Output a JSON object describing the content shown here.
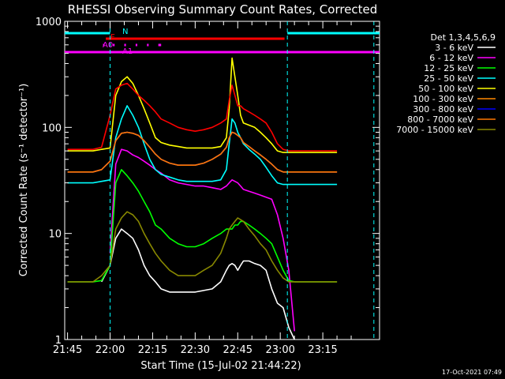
{
  "chart_data": {
    "type": "line",
    "title": "RHESSI Observing Summary Count Rates, Corrected",
    "xlabel": "Start Time (15-Jul-02 21:44:22)",
    "ylabel": "Corrected Count Rate (s⁻¹ detector⁻¹)",
    "yscale": "log",
    "ylim": [
      1,
      1000
    ],
    "xlim_minutes": [
      -1,
      110
    ],
    "x_ticks": [
      {
        "label": "21:45",
        "minute": 0
      },
      {
        "label": "22:00",
        "minute": 15
      },
      {
        "label": "22:15",
        "minute": 30
      },
      {
        "label": "22:30",
        "minute": 45
      },
      {
        "label": "22:45",
        "minute": 60
      },
      {
        "label": "23:00",
        "minute": 75
      },
      {
        "label": "23:15",
        "minute": 90
      }
    ],
    "y_ticks": [
      {
        "label": "1",
        "value": 1
      },
      {
        "label": "10",
        "value": 10
      },
      {
        "label": "100",
        "value": 100
      },
      {
        "label": "1000",
        "value": 1000
      }
    ],
    "legend_title": "Det 1,3,4,5,6,9",
    "x_minutes": [
      0,
      5,
      9,
      12,
      15,
      17,
      19,
      21,
      23,
      25,
      27,
      29,
      31,
      33,
      36,
      39,
      42,
      45,
      48,
      51,
      54,
      56,
      57,
      58,
      59,
      60,
      61,
      62,
      64,
      66,
      68,
      70,
      72,
      74,
      76,
      78,
      80,
      82,
      85,
      88,
      91,
      95
    ],
    "series": [
      {
        "name": "3 - 6 keV",
        "color": "#ffffff",
        "values": [
          null,
          null,
          null,
          3.5,
          5,
          9,
          11,
          10,
          9,
          7,
          5,
          4,
          3.5,
          3,
          2.8,
          2.8,
          2.8,
          2.8,
          2.9,
          3,
          3.5,
          4.5,
          5,
          5.2,
          5,
          4.5,
          5,
          5.5,
          5.5,
          5.2,
          5,
          4.5,
          3,
          2.2,
          2,
          1.3,
          1,
          null,
          null,
          null,
          null,
          null
        ]
      },
      {
        "name": "6 - 12 keV",
        "color": "#ff00ff",
        "values": [
          null,
          null,
          null,
          null,
          6.5,
          45,
          62,
          60,
          55,
          52,
          48,
          44,
          40,
          37,
          32,
          30,
          29,
          28,
          28,
          27,
          26,
          28,
          30,
          32,
          31,
          30,
          28,
          26,
          25,
          24,
          23,
          22,
          21,
          15,
          9,
          4.5,
          1.2,
          null,
          null,
          null,
          null,
          null
        ]
      },
      {
        "name": "12 - 25 keV",
        "color": "#00ff00",
        "values": [
          3.5,
          3.5,
          3.5,
          3.6,
          5,
          30,
          40,
          35,
          30,
          25,
          20,
          16,
          12,
          11,
          9,
          8,
          7.5,
          7.5,
          8,
          9,
          10,
          11,
          11,
          11,
          12,
          12,
          13,
          13,
          12,
          11,
          10,
          9,
          8,
          6,
          4.5,
          3.6,
          3.5,
          3.5,
          3.5,
          3.5,
          3.5,
          3.5
        ]
      },
      {
        "name": "25 - 50 keV",
        "color": "#00ffff",
        "values": [
          30,
          30,
          30,
          31,
          32,
          80,
          120,
          160,
          130,
          100,
          70,
          50,
          40,
          36,
          34,
          32,
          31,
          31,
          31,
          31,
          32,
          40,
          70,
          120,
          110,
          90,
          80,
          70,
          62,
          56,
          50,
          42,
          35,
          30,
          29,
          29,
          29,
          29,
          29,
          29,
          29,
          29
        ]
      },
      {
        "name": "50 - 100 keV",
        "color": "#ffff00",
        "values": [
          60,
          60,
          60,
          62,
          64,
          200,
          270,
          300,
          260,
          200,
          150,
          110,
          80,
          72,
          68,
          66,
          64,
          64,
          64,
          64,
          66,
          80,
          150,
          450,
          300,
          200,
          130,
          110,
          105,
          100,
          90,
          80,
          70,
          60,
          58,
          58,
          58,
          58,
          58,
          58,
          58,
          58
        ]
      },
      {
        "name": "100 - 300 keV",
        "color": "#ff8800",
        "values": [
          38,
          38,
          38,
          40,
          48,
          75,
          88,
          90,
          88,
          84,
          75,
          65,
          56,
          50,
          46,
          44,
          44,
          44,
          46,
          50,
          56,
          65,
          80,
          90,
          88,
          84,
          80,
          72,
          66,
          60,
          55,
          50,
          45,
          40,
          38,
          38,
          38,
          38,
          38,
          38,
          38,
          38
        ]
      },
      {
        "name": "300 - 800 keV",
        "color": "#0000ff",
        "values": [
          38,
          38,
          38,
          40,
          48,
          75,
          88,
          90,
          88,
          84,
          75,
          65,
          56,
          50,
          46,
          44,
          44,
          44,
          46,
          50,
          56,
          65,
          80,
          90,
          88,
          84,
          80,
          72,
          66,
          60,
          55,
          50,
          45,
          40,
          38,
          38,
          38,
          38,
          38,
          38,
          38,
          38
        ]
      },
      {
        "name": "800 - 7000 keV",
        "color": "#ff7700",
        "values": [
          38,
          38,
          38,
          40,
          48,
          75,
          88,
          90,
          88,
          84,
          75,
          65,
          56,
          50,
          46,
          44,
          44,
          44,
          46,
          50,
          56,
          65,
          80,
          90,
          88,
          84,
          80,
          72,
          66,
          60,
          55,
          50,
          45,
          40,
          38,
          38,
          38,
          38,
          38,
          38,
          38,
          38
        ]
      },
      {
        "name": "7000 - 15000 keV",
        "color": "#888800",
        "values": [
          3.5,
          3.5,
          3.5,
          4,
          5,
          11,
          14,
          16,
          15,
          13,
          10,
          8,
          6.5,
          5.5,
          4.5,
          4,
          4,
          4,
          4.5,
          5,
          6.5,
          9,
          11,
          12,
          13,
          14,
          13.5,
          13,
          11,
          9.5,
          8,
          7,
          5.5,
          4.5,
          3.8,
          3.5,
          3.5,
          3.5,
          3.5,
          3.5,
          3.5,
          3.5
        ]
      },
      {
        "name": "",
        "color": "#ff0000",
        "values": [
          62,
          62,
          62,
          65,
          130,
          230,
          250,
          260,
          230,
          200,
          180,
          160,
          140,
          120,
          110,
          100,
          95,
          92,
          95,
          100,
          110,
          120,
          180,
          250,
          200,
          160,
          160,
          150,
          140,
          130,
          120,
          110,
          90,
          70,
          62,
          60,
          60,
          60,
          60,
          60,
          60,
          60
        ]
      }
    ],
    "flags": [
      {
        "label": "F",
        "color": "#ff0000",
        "segments": [
          [
            13.5,
            76.5
          ]
        ]
      },
      {
        "label": "N",
        "color": "#00ffff",
        "segments": [
          [
            -1,
            15
          ],
          [
            77.5,
            110
          ]
        ]
      },
      {
        "label": "A0",
        "color": "#ff00ff",
        "segments": [
          [
            -1,
            110
          ]
        ]
      },
      {
        "label": "A1",
        "color": "#ff00ff",
        "segments": [
          [
            12.5,
            13
          ],
          [
            16,
            16.6
          ],
          [
            20,
            20.6
          ],
          [
            24,
            24.6
          ],
          [
            28,
            28.6
          ],
          [
            32,
            33
          ]
        ]
      }
    ],
    "attenuator_markers_minutes": [
      15,
      77.5,
      108
    ]
  },
  "footer": {
    "timestamp": "17-Oct-2021 07:49"
  }
}
